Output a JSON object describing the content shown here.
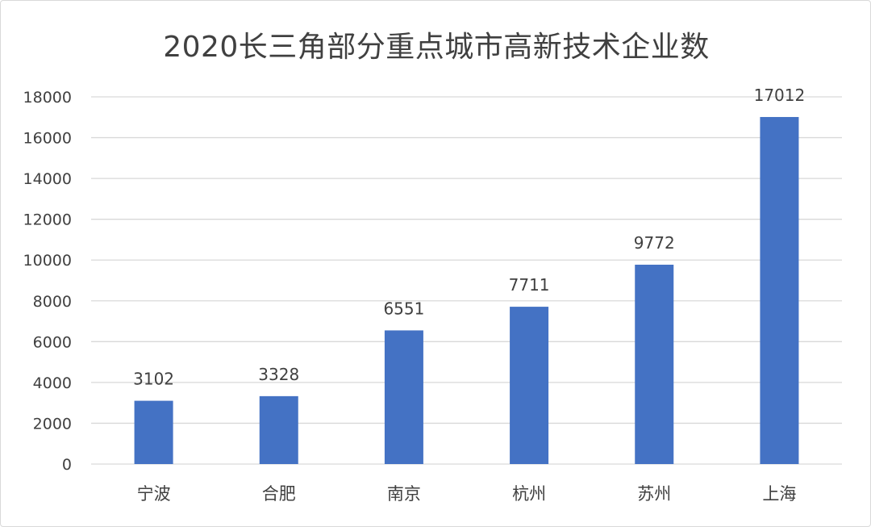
{
  "chart_data": {
    "type": "bar",
    "title": "2020长三角部分重点城市高新技术企业数",
    "xlabel": "",
    "ylabel": "",
    "categories": [
      "宁波",
      "合肥",
      "南京",
      "杭州",
      "苏州",
      "上海"
    ],
    "values": [
      3102,
      3328,
      6551,
      7711,
      9772,
      17012
    ],
    "yticks": [
      0,
      2000,
      4000,
      6000,
      8000,
      10000,
      12000,
      14000,
      16000,
      18000
    ],
    "ylim": [
      0,
      18000
    ],
    "grid": true,
    "legend": "none",
    "data_labels": true,
    "colors": {
      "bar": "#4472C4",
      "grid": "#d9d9d9",
      "text": "#404040"
    }
  }
}
